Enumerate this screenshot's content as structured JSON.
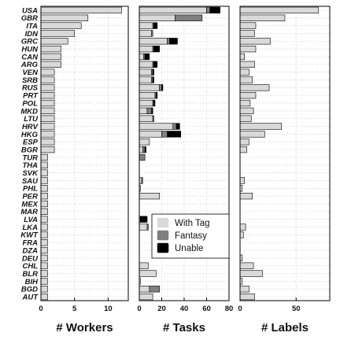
{
  "chart_data": {
    "type": "bar",
    "orientation": "horizontal",
    "categories": [
      "USA",
      "GBR",
      "ITA",
      "IDN",
      "GRC",
      "HUN",
      "CAN",
      "ARG",
      "VEN",
      "SRB",
      "RUS",
      "PRT",
      "POL",
      "MKD",
      "LTU",
      "HRV",
      "HKG",
      "ESP",
      "BGR",
      "TUR",
      "THA",
      "SVK",
      "SAU",
      "PHL",
      "PER",
      "MEX",
      "MAR",
      "LVA",
      "LKA",
      "KWT",
      "FRA",
      "DZA",
      "DEU",
      "CHL",
      "BLR",
      "BIH",
      "BGD",
      "AUT"
    ],
    "grid": true,
    "colors": {
      "with_tag": "#d9d9d9",
      "fantasy": "#7f7f7f",
      "unable": "#000000"
    },
    "panels": [
      {
        "xlabel": "# Workers",
        "xlim": [
          0,
          13
        ],
        "xticks": [
          0,
          5,
          10
        ],
        "tick_labels": [
          "0",
          "5",
          "10"
        ],
        "series": [
          {
            "key": "workers",
            "values": [
              12,
              7,
              6,
              5,
              4,
              3,
              3,
              3,
              2,
              2,
              2,
              2,
              2,
              2,
              2,
              2,
              2,
              2,
              2,
              1,
              1,
              1,
              1,
              1,
              1,
              1,
              1,
              1,
              1,
              1,
              1,
              1,
              1,
              1,
              1,
              1,
              1,
              1
            ]
          }
        ]
      },
      {
        "xlabel": "# Tasks",
        "xlim": [
          0,
          80
        ],
        "xticks": [
          0,
          20,
          40,
          60,
          80
        ],
        "tick_labels": [
          "0",
          "20",
          "40",
          "60",
          "80"
        ],
        "stacked": true,
        "legend": {
          "position": "lower-center",
          "entries": [
            "With Tag",
            "Fantasy",
            "Unable"
          ]
        },
        "series": [
          {
            "name": "With Tag",
            "key": "with_tag",
            "values": [
              60,
              32,
              12,
              11,
              25,
              12,
              4,
              12,
              11,
              11,
              18,
              14,
              12,
              7,
              12,
              30,
              20,
              9,
              3,
              0,
              0,
              0,
              2,
              1,
              18,
              0,
              0,
              0,
              7,
              0,
              0,
              0,
              0,
              8,
              15,
              1,
              9,
              12
            ]
          },
          {
            "name": "Fantasy",
            "key": "fantasy",
            "values": [
              3,
              24,
              1,
              1,
              2,
              1,
              1,
              1,
              1,
              1,
              2,
              1,
              1,
              4,
              1,
              3,
              5,
              0,
              2,
              5,
              0,
              0,
              1,
              0,
              0,
              0,
              0,
              1,
              1,
              0,
              0,
              0,
              0,
              0,
              0,
              0,
              9,
              0
            ]
          },
          {
            "name": "Unable",
            "key": "unable",
            "values": [
              9,
              0,
              3,
              0,
              7,
              5,
              4,
              3,
              1,
              1,
              1,
              1,
              1,
              1,
              0,
              3,
              12,
              0,
              1,
              0,
              0,
              0,
              0,
              0,
              0,
              0,
              0,
              6,
              0,
              0,
              0,
              0,
              0,
              0,
              0,
              0,
              0,
              0
            ]
          }
        ]
      },
      {
        "xlabel": "# Labels",
        "xlim": [
          0,
          80
        ],
        "xticks": [
          0,
          50
        ],
        "tick_labels": [
          "0",
          "50"
        ],
        "series": [
          {
            "key": "labels",
            "values": [
              70,
              40,
              14,
              13,
              27,
              14,
              4,
              13,
              8,
              11,
              26,
              14,
              9,
              12,
              10,
              37,
              22,
              8,
              6,
              0,
              0,
              0,
              4,
              2,
              11,
              0,
              0,
              0,
              5,
              3,
              0,
              0,
              2,
              12,
              20,
              2,
              8,
              13
            ]
          }
        ]
      }
    ]
  }
}
